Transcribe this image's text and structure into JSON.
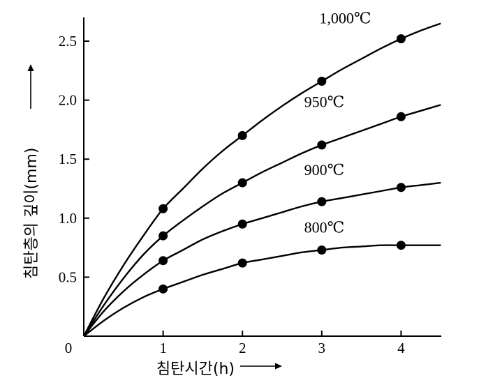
{
  "chart_data": {
    "type": "line",
    "title": "",
    "xlabel": "침탄시간(h)",
    "ylabel": "침탄층의 깊이(mm)",
    "origin_label": "0",
    "xlim": [
      0,
      4.5
    ],
    "ylim": [
      0,
      2.65
    ],
    "x_ticks": [
      1,
      2,
      3,
      4
    ],
    "x_tick_labels": [
      "1",
      "2",
      "3",
      "4"
    ],
    "y_ticks": [
      0.5,
      1.0,
      1.5,
      2.0,
      2.5
    ],
    "y_tick_labels": [
      "0.5",
      "1.0",
      "1.5",
      "2.0",
      "2.5"
    ],
    "grid": false,
    "legend": "none",
    "series": [
      {
        "name": "1,000℃",
        "x": [
          1,
          2,
          3,
          4
        ],
        "values": [
          1.08,
          1.7,
          2.16,
          2.52
        ],
        "curve": [
          [
            0,
            0
          ],
          [
            0.25,
            0.32
          ],
          [
            0.5,
            0.6
          ],
          [
            0.75,
            0.85
          ],
          [
            1,
            1.08
          ],
          [
            1.25,
            1.25
          ],
          [
            1.5,
            1.42
          ],
          [
            1.75,
            1.57
          ],
          [
            2,
            1.7
          ],
          [
            2.25,
            1.83
          ],
          [
            2.5,
            1.95
          ],
          [
            2.75,
            2.06
          ],
          [
            3,
            2.16
          ],
          [
            3.25,
            2.26
          ],
          [
            3.5,
            2.35
          ],
          [
            3.75,
            2.44
          ],
          [
            4,
            2.52
          ],
          [
            4.25,
            2.59
          ],
          [
            4.5,
            2.65
          ]
        ]
      },
      {
        "name": "950℃",
        "x": [
          1,
          2,
          3,
          4
        ],
        "values": [
          0.85,
          1.3,
          1.62,
          1.86
        ],
        "curve": [
          [
            0,
            0
          ],
          [
            0.25,
            0.26
          ],
          [
            0.5,
            0.49
          ],
          [
            0.75,
            0.69
          ],
          [
            1,
            0.85
          ],
          [
            1.25,
            0.98
          ],
          [
            1.5,
            1.1
          ],
          [
            1.75,
            1.21
          ],
          [
            2,
            1.3
          ],
          [
            2.25,
            1.39
          ],
          [
            2.5,
            1.47
          ],
          [
            2.75,
            1.55
          ],
          [
            3,
            1.62
          ],
          [
            3.25,
            1.68
          ],
          [
            3.5,
            1.74
          ],
          [
            3.75,
            1.8
          ],
          [
            4,
            1.86
          ],
          [
            4.25,
            1.91
          ],
          [
            4.5,
            1.96
          ]
        ]
      },
      {
        "name": "900℃",
        "x": [
          1,
          2,
          3,
          4
        ],
        "values": [
          0.64,
          0.95,
          1.14,
          1.26
        ],
        "curve": [
          [
            0,
            0
          ],
          [
            0.25,
            0.21
          ],
          [
            0.5,
            0.38
          ],
          [
            0.75,
            0.52
          ],
          [
            1,
            0.64
          ],
          [
            1.25,
            0.73
          ],
          [
            1.5,
            0.82
          ],
          [
            1.75,
            0.89
          ],
          [
            2,
            0.95
          ],
          [
            2.25,
            1.0
          ],
          [
            2.5,
            1.05
          ],
          [
            2.75,
            1.1
          ],
          [
            3,
            1.14
          ],
          [
            3.25,
            1.17
          ],
          [
            3.5,
            1.2
          ],
          [
            3.75,
            1.23
          ],
          [
            4,
            1.26
          ],
          [
            4.25,
            1.28
          ],
          [
            4.5,
            1.3
          ]
        ]
      },
      {
        "name": "800℃",
        "x": [
          1,
          2,
          3,
          4
        ],
        "values": [
          0.4,
          0.62,
          0.73,
          0.77
        ],
        "curve": [
          [
            0,
            0
          ],
          [
            0.25,
            0.13
          ],
          [
            0.5,
            0.24
          ],
          [
            0.75,
            0.33
          ],
          [
            1,
            0.4
          ],
          [
            1.25,
            0.46
          ],
          [
            1.5,
            0.52
          ],
          [
            1.75,
            0.57
          ],
          [
            2,
            0.62
          ],
          [
            2.25,
            0.65
          ],
          [
            2.5,
            0.68
          ],
          [
            2.75,
            0.71
          ],
          [
            3,
            0.73
          ],
          [
            3.25,
            0.75
          ],
          [
            3.5,
            0.76
          ],
          [
            3.75,
            0.77
          ],
          [
            4,
            0.77
          ],
          [
            4.25,
            0.77
          ],
          [
            4.5,
            0.77
          ]
        ]
      }
    ]
  }
}
